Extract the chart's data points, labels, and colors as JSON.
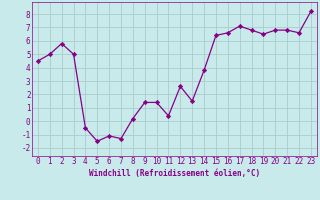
{
  "x": [
    0,
    1,
    2,
    3,
    4,
    5,
    6,
    7,
    8,
    9,
    10,
    11,
    12,
    13,
    14,
    15,
    16,
    17,
    18,
    19,
    20,
    21,
    22,
    23
  ],
  "y": [
    4.5,
    5.0,
    5.8,
    5.0,
    -0.5,
    -1.5,
    -1.1,
    -1.3,
    0.2,
    1.4,
    1.4,
    0.4,
    2.6,
    1.5,
    3.8,
    6.4,
    6.6,
    7.1,
    6.8,
    6.5,
    6.8,
    6.8,
    6.6,
    8.2
  ],
  "line_color": "#880088",
  "marker": "D",
  "markersize": 2.2,
  "linewidth": 0.9,
  "bg_color": "#c8eaea",
  "grid_color": "#aacccc",
  "xlabel": "Windchill (Refroidissement éolien,°C)",
  "xlabel_fontsize": 5.5,
  "tick_fontsize": 5.5,
  "xlim": [
    -0.5,
    23.5
  ],
  "ylim": [
    -2.6,
    8.9
  ],
  "yticks": [
    -2,
    -1,
    0,
    1,
    2,
    3,
    4,
    5,
    6,
    7,
    8
  ],
  "xticks": [
    0,
    1,
    2,
    3,
    4,
    5,
    6,
    7,
    8,
    9,
    10,
    11,
    12,
    13,
    14,
    15,
    16,
    17,
    18,
    19,
    20,
    21,
    22,
    23
  ]
}
